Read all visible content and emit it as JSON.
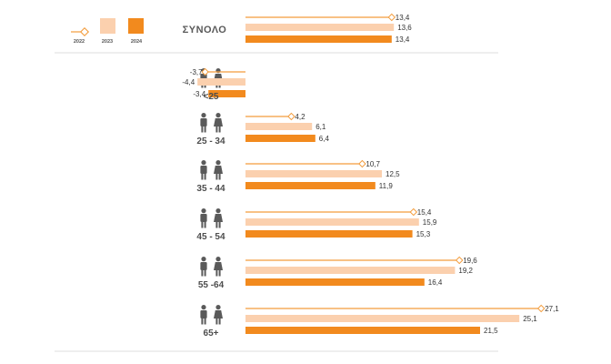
{
  "chart_data": {
    "type": "bar",
    "orientation": "horizontal",
    "title": "",
    "xlabel": "",
    "ylabel": "",
    "categories": [
      "ΣΥΝΟΛΟ",
      "<25",
      "25 - 34",
      "35 - 44",
      "45 - 54",
      "55 -64",
      "65+"
    ],
    "series": [
      {
        "name": "2022",
        "style": "line-marker",
        "values": [
          13.4,
          -3.7,
          4.2,
          10.7,
          15.4,
          19.6,
          27.1
        ],
        "labels": [
          "13,4",
          "-3,7",
          "4,2",
          "10,7",
          "15,4",
          "19,6",
          "27,1"
        ]
      },
      {
        "name": "2023",
        "style": "bar",
        "values": [
          13.6,
          -4.4,
          6.1,
          12.5,
          15.9,
          19.2,
          25.1
        ],
        "labels": [
          "13,6",
          "-4,4",
          "6,1",
          "12,5",
          "15,9",
          "19,2",
          "25,1"
        ]
      },
      {
        "name": "2024",
        "style": "bar",
        "values": [
          13.4,
          -3.4,
          6.4,
          11.9,
          15.3,
          16.4,
          21.5
        ],
        "labels": [
          "13,4",
          "-3,4",
          "6,4",
          "11,9",
          "15,3",
          "16,4",
          "21,5"
        ]
      }
    ],
    "xlim": [
      -4.5,
      28
    ],
    "grid": false,
    "legend_position": "top-left",
    "colors": {
      "2022": "#f39c3c",
      "2023": "#fbd0ae",
      "2024": "#f28a1e"
    },
    "icons": [
      "male-female-person-icon"
    ]
  }
}
